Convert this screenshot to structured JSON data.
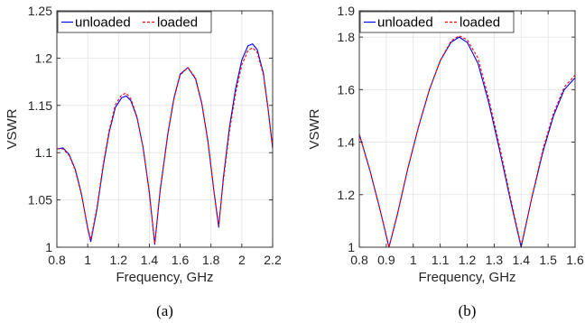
{
  "chart_data": [
    {
      "type": "line",
      "caption": "(a)",
      "xlabel": "Frequency, GHz",
      "ylabel": "VSWR",
      "xlim": [
        0.8,
        2.2
      ],
      "ylim": [
        1,
        1.25
      ],
      "xticks": [
        0.8,
        1,
        1.2,
        1.4,
        1.6,
        1.8,
        2,
        2.2
      ],
      "xtick_labels": [
        "0.8",
        "1",
        "1.2",
        "1.4",
        "1.6",
        "1.8",
        "2",
        "2.2"
      ],
      "yticks": [
        1,
        1.05,
        1.1,
        1.15,
        1.2,
        1.25
      ],
      "ytick_labels": [
        "1",
        "1.05",
        "1.1",
        "1.15",
        "1.2",
        "1.25"
      ],
      "grid": true,
      "legend": "top-left",
      "series": [
        {
          "name": "unloaded",
          "color": "#0000ff",
          "dash": "solid",
          "x": [
            0.8,
            0.84,
            0.88,
            0.92,
            0.96,
            1.0,
            1.02,
            1.06,
            1.1,
            1.14,
            1.18,
            1.22,
            1.25,
            1.28,
            1.32,
            1.36,
            1.4,
            1.435,
            1.47,
            1.52,
            1.56,
            1.6,
            1.65,
            1.7,
            1.74,
            1.78,
            1.82,
            1.85,
            1.88,
            1.92,
            1.96,
            2.0,
            2.04,
            2.07,
            2.1,
            2.14,
            2.17,
            2.2
          ],
          "y": [
            1.104,
            1.105,
            1.098,
            1.082,
            1.056,
            1.02,
            1.006,
            1.04,
            1.085,
            1.122,
            1.148,
            1.158,
            1.16,
            1.155,
            1.137,
            1.105,
            1.058,
            1.003,
            1.06,
            1.12,
            1.158,
            1.183,
            1.19,
            1.178,
            1.152,
            1.112,
            1.058,
            1.021,
            1.073,
            1.127,
            1.168,
            1.198,
            1.213,
            1.215,
            1.209,
            1.184,
            1.147,
            1.105
          ]
        },
        {
          "name": "loaded",
          "color": "#ff0000",
          "dash": "dashed",
          "x": [
            0.8,
            0.84,
            0.88,
            0.92,
            0.96,
            1.0,
            1.02,
            1.06,
            1.1,
            1.14,
            1.18,
            1.22,
            1.25,
            1.28,
            1.32,
            1.36,
            1.4,
            1.435,
            1.47,
            1.52,
            1.56,
            1.6,
            1.65,
            1.7,
            1.74,
            1.78,
            1.82,
            1.85,
            1.88,
            1.92,
            1.96,
            2.0,
            2.04,
            2.07,
            2.1,
            2.14,
            2.17,
            2.2
          ],
          "y": [
            1.104,
            1.104,
            1.097,
            1.081,
            1.055,
            1.021,
            1.008,
            1.042,
            1.087,
            1.124,
            1.151,
            1.161,
            1.163,
            1.157,
            1.138,
            1.105,
            1.057,
            1.004,
            1.059,
            1.119,
            1.157,
            1.182,
            1.19,
            1.179,
            1.153,
            1.113,
            1.059,
            1.023,
            1.07,
            1.123,
            1.163,
            1.193,
            1.208,
            1.211,
            1.206,
            1.182,
            1.146,
            1.104
          ]
        }
      ]
    },
    {
      "type": "line",
      "caption": "(b)",
      "xlabel": "Frequency, GHz",
      "ylabel": "VSWR",
      "xlim": [
        0.8,
        1.6
      ],
      "ylim": [
        1,
        1.9
      ],
      "xticks": [
        0.8,
        0.9,
        1.0,
        1.1,
        1.2,
        1.3,
        1.4,
        1.5,
        1.6
      ],
      "xtick_labels": [
        "0.8",
        "0.9",
        "1",
        "1.1",
        "1.2",
        "1.3",
        "1.4",
        "1.5",
        "1.6"
      ],
      "yticks": [
        1,
        1.2,
        1.4,
        1.6,
        1.8,
        1.9
      ],
      "ytick_labels": [
        "1",
        "1.2",
        "1.4",
        "1.6",
        "1.8",
        "1.9"
      ],
      "grid": true,
      "legend": "top-left",
      "series": [
        {
          "name": "unloaded",
          "color": "#0000ff",
          "dash": "solid",
          "x": [
            0.8,
            0.84,
            0.88,
            0.91,
            0.94,
            0.98,
            1.02,
            1.06,
            1.1,
            1.14,
            1.17,
            1.2,
            1.24,
            1.28,
            1.32,
            1.36,
            1.4,
            1.44,
            1.48,
            1.52,
            1.56,
            1.6
          ],
          "y": [
            1.43,
            1.29,
            1.13,
            1.0,
            1.12,
            1.3,
            1.46,
            1.6,
            1.71,
            1.78,
            1.8,
            1.78,
            1.7,
            1.55,
            1.37,
            1.18,
            1.0,
            1.19,
            1.36,
            1.5,
            1.6,
            1.645
          ]
        },
        {
          "name": "loaded",
          "color": "#ff0000",
          "dash": "dashed",
          "x": [
            0.8,
            0.84,
            0.88,
            0.91,
            0.94,
            0.98,
            1.02,
            1.06,
            1.1,
            1.14,
            1.17,
            1.2,
            1.24,
            1.28,
            1.32,
            1.36,
            1.4,
            1.44,
            1.48,
            1.52,
            1.56,
            1.6
          ],
          "y": [
            1.43,
            1.29,
            1.13,
            1.0,
            1.12,
            1.3,
            1.46,
            1.6,
            1.71,
            1.785,
            1.805,
            1.79,
            1.72,
            1.565,
            1.385,
            1.19,
            1.005,
            1.19,
            1.37,
            1.51,
            1.61,
            1.655
          ]
        }
      ]
    }
  ]
}
